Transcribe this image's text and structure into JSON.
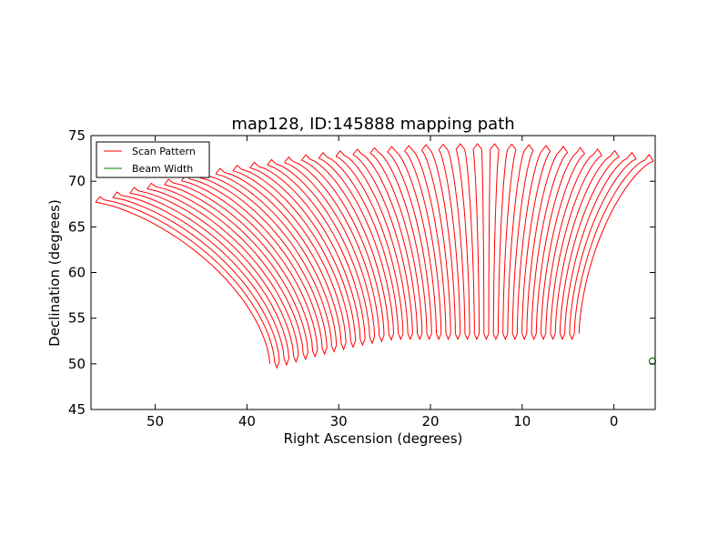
{
  "chart_data": {
    "type": "line",
    "title": "map128, ID:145888 mapping path",
    "xlabel": "Right Ascension (degrees)",
    "ylabel": "Declination (degrees)",
    "xlim": [
      57,
      -4.5
    ],
    "ylim": [
      45,
      75
    ],
    "x_ticks": [
      50,
      40,
      30,
      20,
      10,
      0
    ],
    "x_tick_labels": [
      "50",
      "40",
      "30",
      "20",
      "10",
      "0"
    ],
    "y_ticks": [
      45,
      50,
      55,
      60,
      65,
      70,
      75
    ],
    "y_tick_labels": [
      "45",
      "50",
      "55",
      "60",
      "65",
      "70",
      "75"
    ],
    "grid": false,
    "legend_position": "top-left",
    "series": [
      {
        "name": "Scan Pattern",
        "color": "#ff0000",
        "description": "boustrophedon scan: 33 leg pairs sweeping from lower-left arc (bottom) to upper arc (top)",
        "bottom_arc": {
          "ra_start": 37.5,
          "dec_start": 50.0,
          "ra_end": 3.8,
          "dec_end": 53.5,
          "dec_peak": 53.0
        },
        "top_arc": {
          "ra_start": 56.5,
          "dec_start": 67.7,
          "ra_end": -4.3,
          "dec_end": 72.2,
          "dec_peak": 73.1
        },
        "leg_count": 66
      },
      {
        "name": "Beam Width",
        "color": "#008000",
        "marker": "circle",
        "points": [
          {
            "ra": -4.2,
            "dec": 50.3
          }
        ]
      }
    ]
  }
}
